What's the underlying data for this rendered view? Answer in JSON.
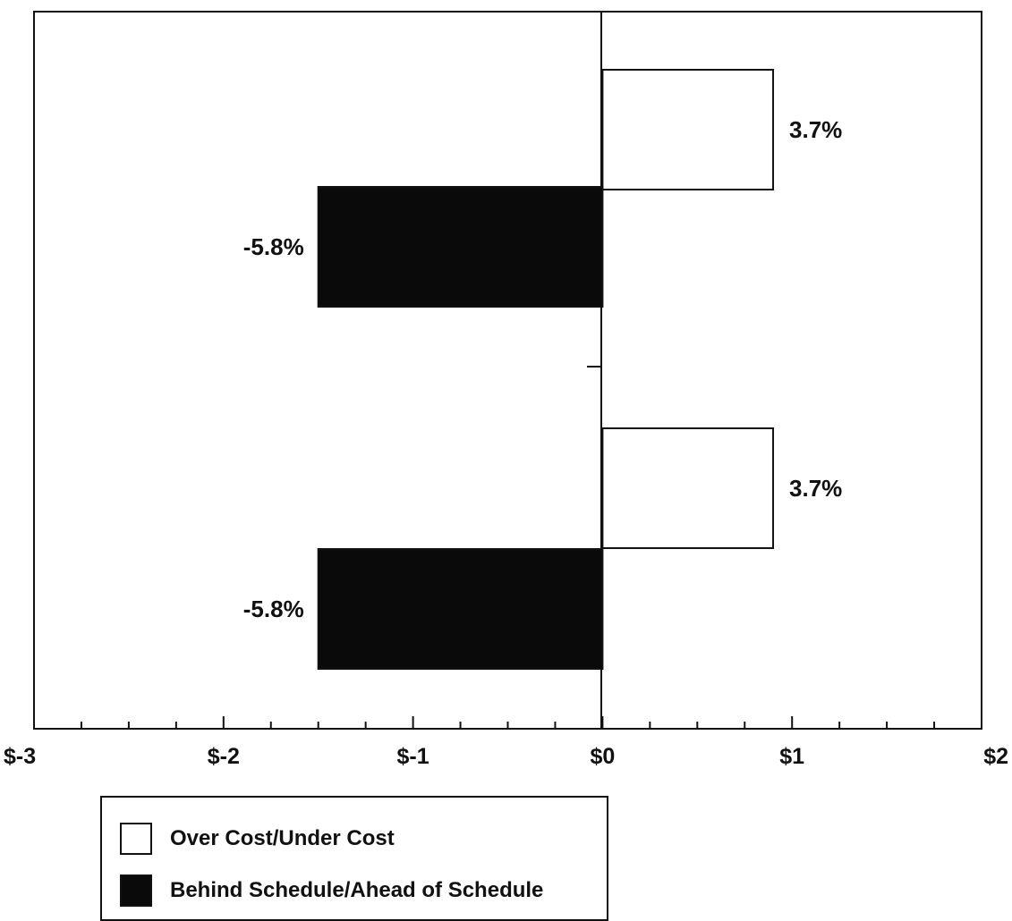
{
  "colors": {
    "over_cost": "#ffffff",
    "behind_schedule": "#0a0a0a",
    "axis": "#111111"
  },
  "chart_data": {
    "type": "bar",
    "orientation": "horizontal",
    "x_range": [
      -3,
      2
    ],
    "x_ticks": [
      "$-3",
      "$-2",
      "$-1",
      "$0",
      "$1",
      "$2"
    ],
    "x_tick_values": [
      -3,
      -2,
      -1,
      0,
      1,
      2
    ],
    "minor_tick_step": 0.25,
    "grid": false,
    "legend_position": "bottom-left",
    "groups": [
      {
        "bars": [
          {
            "series": "Over Cost/Under Cost",
            "value": 0.9,
            "label": "3.7%"
          },
          {
            "series": "Behind Schedule/Ahead of Schedule",
            "value": -1.5,
            "label": "-5.8%"
          }
        ]
      },
      {
        "bars": [
          {
            "series": "Over Cost/Under Cost",
            "value": 0.9,
            "label": "3.7%"
          },
          {
            "series": "Behind Schedule/Ahead of Schedule",
            "value": -1.5,
            "label": "-5.8%"
          }
        ]
      }
    ],
    "series": [
      {
        "name": "Over Cost/Under Cost",
        "fill": "#ffffff"
      },
      {
        "name": "Behind Schedule/Ahead of Schedule",
        "fill": "#0a0a0a"
      }
    ]
  },
  "legend": {
    "items": [
      {
        "label": "Over Cost/Under Cost"
      },
      {
        "label": "Behind Schedule/Ahead of Schedule"
      }
    ]
  }
}
